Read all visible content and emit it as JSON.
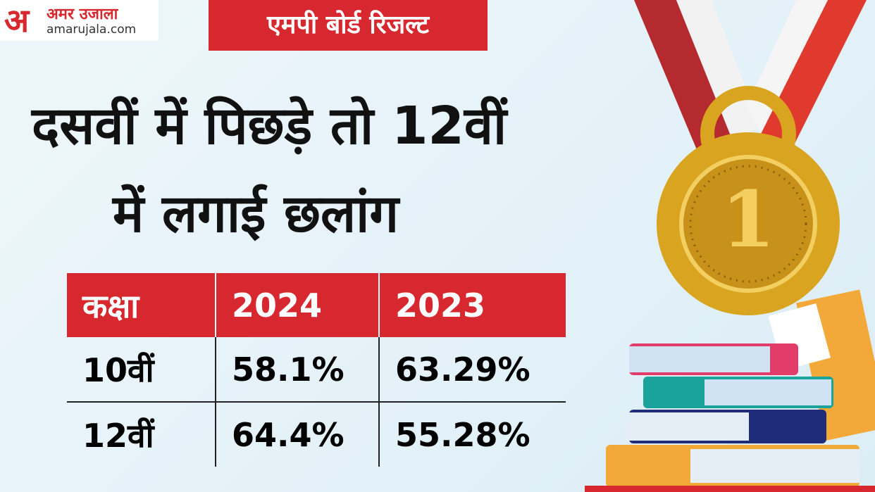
{
  "logo": {
    "letter": "अ",
    "name": "अमर उजाला",
    "site": "amarujala.com"
  },
  "badge": "एमपी बोर्ड रिजल्ट",
  "headline": [
    "दसवीं में पिछड़े तो 12वीं",
    "में लगाई छलांग"
  ],
  "medal": {
    "label": "1"
  },
  "table": {
    "header": [
      "कक्षा",
      "2024",
      "2023"
    ],
    "rows": [
      [
        "10वीं",
        "58.1%",
        "63.29%"
      ],
      [
        "12वीं",
        "64.4%",
        "55.28%"
      ]
    ]
  }
}
